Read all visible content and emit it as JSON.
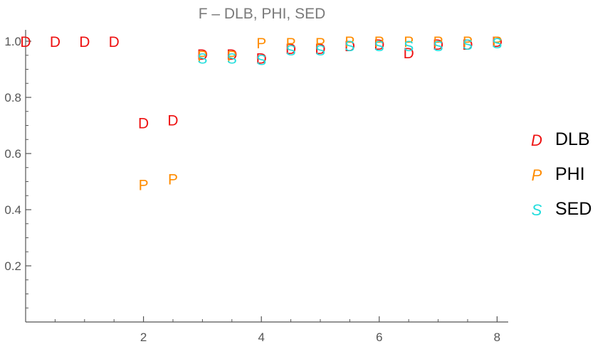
{
  "chart_data": {
    "type": "scatter",
    "title": "F – DLB, PHI, SED",
    "xlabel": "",
    "ylabel": "",
    "xlim": [
      0,
      8.2
    ],
    "ylim": [
      0,
      1.03
    ],
    "x_ticks": [
      2,
      4,
      6,
      8
    ],
    "y_ticks": [
      0.2,
      0.4,
      0.6,
      0.8,
      1.0
    ],
    "x_minor_step": 0.5,
    "y_minor_step": 0.05,
    "grid": false,
    "legend_position": "right",
    "series": [
      {
        "name": "DLB",
        "marker": "D",
        "color": "#ee1111",
        "points": [
          [
            0,
            1.0
          ],
          [
            0.5,
            1.0
          ],
          [
            1.0,
            1.0
          ],
          [
            1.5,
            1.0
          ],
          [
            2.0,
            0.71
          ],
          [
            2.5,
            0.72
          ],
          [
            3.0,
            0.955
          ],
          [
            3.5,
            0.955
          ],
          [
            4.0,
            0.94
          ],
          [
            4.5,
            0.975
          ],
          [
            5.0,
            0.975
          ],
          [
            5.5,
            0.985
          ],
          [
            6.0,
            0.99
          ],
          [
            6.5,
            0.96
          ],
          [
            7.0,
            0.99
          ],
          [
            7.5,
            0.99
          ],
          [
            8.0,
            1.0
          ]
        ]
      },
      {
        "name": "PHI",
        "marker": "P",
        "color": "#ff8c00",
        "points": [
          [
            2.0,
            0.49
          ],
          [
            2.5,
            0.51
          ],
          [
            3.0,
            0.95
          ],
          [
            3.5,
            0.95
          ],
          [
            4.0,
            0.995
          ],
          [
            4.5,
            0.995
          ],
          [
            5.0,
            0.995
          ],
          [
            5.5,
            1.0
          ],
          [
            6.0,
            1.0
          ],
          [
            6.5,
            1.0
          ],
          [
            7.0,
            1.0
          ],
          [
            7.5,
            1.0
          ],
          [
            8.0,
            1.0
          ]
        ]
      },
      {
        "name": "SED",
        "marker": "S",
        "color": "#22dddd",
        "points": [
          [
            3.0,
            0.94
          ],
          [
            3.5,
            0.94
          ],
          [
            4.0,
            0.935
          ],
          [
            4.5,
            0.97
          ],
          [
            5.0,
            0.97
          ],
          [
            5.5,
            0.985
          ],
          [
            6.0,
            0.985
          ],
          [
            6.5,
            0.985
          ],
          [
            7.0,
            0.985
          ],
          [
            7.5,
            0.99
          ],
          [
            8.0,
            0.995
          ]
        ]
      }
    ]
  }
}
